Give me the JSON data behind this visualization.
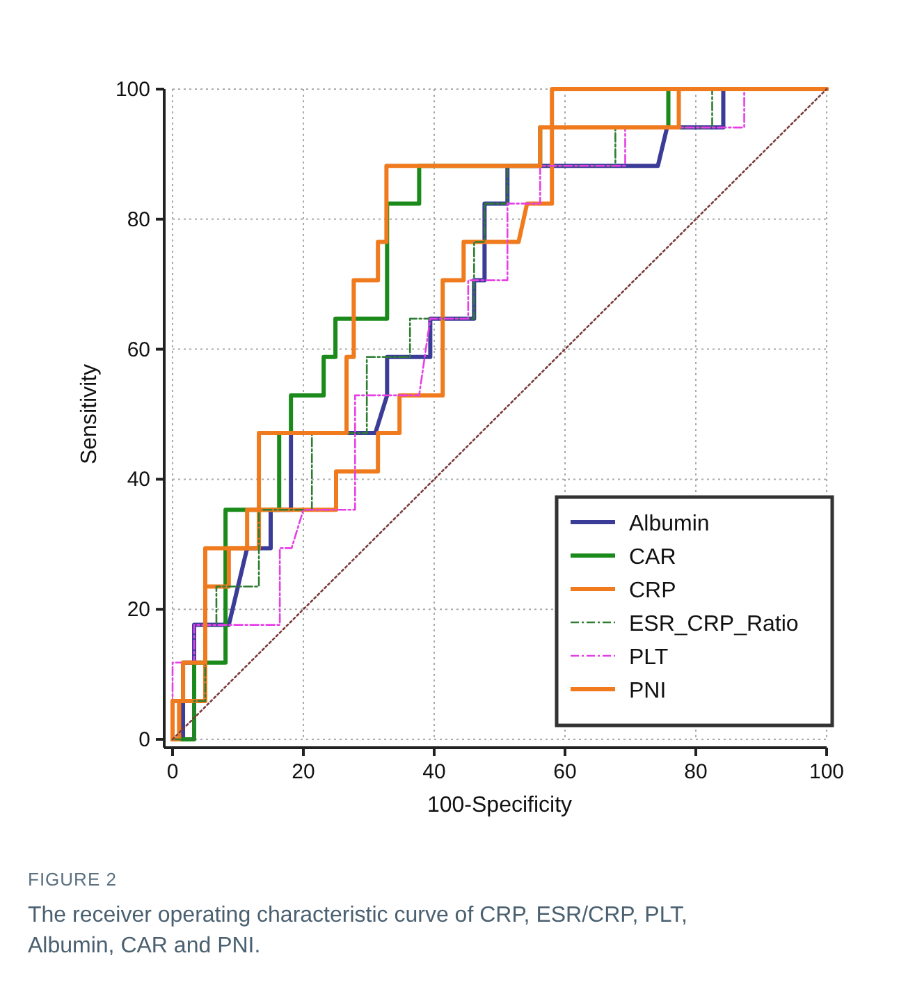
{
  "chart_data": {
    "type": "line",
    "xlabel": "100-Specificity",
    "ylabel": "Sensitivity",
    "xlim": [
      0,
      100
    ],
    "ylim": [
      0,
      100
    ],
    "xticks": [
      0,
      20,
      40,
      60,
      80,
      100
    ],
    "yticks": [
      0,
      20,
      40,
      60,
      80,
      100
    ],
    "grid": true,
    "legend": "bottom right",
    "annotations": [
      "FIGURE 2",
      "The receiver operating characteristic curve of CRP, ESR/CRP, PLT, Albumin, CAR and PNI."
    ],
    "series": [
      {
        "name": "Albumin",
        "color": "#3b3b98",
        "line_style": "solid",
        "x": [
          0,
          1.6,
          1.6,
          3.3,
          3.3,
          8.6,
          11.4,
          15,
          15,
          18.1,
          18.1,
          31,
          32.8,
          32.8,
          39.4,
          39.4,
          46.1,
          46.1,
          47.7,
          47.7,
          51.2,
          51.2,
          74.2,
          75.6,
          84.2,
          84.2,
          100
        ],
        "values": [
          0,
          0,
          11.8,
          11.8,
          17.6,
          17.6,
          29.4,
          29.4,
          35.3,
          35.3,
          47.1,
          47.1,
          52.9,
          58.8,
          58.8,
          64.7,
          64.7,
          70.6,
          70.6,
          82.4,
          82.4,
          88.2,
          88.2,
          94.1,
          94.1,
          100,
          100
        ]
      },
      {
        "name": "CAR",
        "color": "#1a8a1a",
        "line_style": "solid",
        "x": [
          0,
          3.3,
          3.3,
          8.1,
          8.1,
          16.3,
          16.3,
          18.1,
          18.1,
          23.1,
          23.1,
          24.9,
          24.9,
          32.8,
          32.8,
          37.7,
          37.7,
          56.2,
          56.2,
          75.8,
          75.8,
          100
        ],
        "values": [
          0,
          0,
          11.8,
          11.8,
          35.3,
          35.3,
          47.1,
          47.1,
          52.9,
          52.9,
          58.8,
          58.8,
          64.7,
          64.7,
          82.4,
          82.4,
          88.2,
          88.2,
          94.1,
          94.1,
          100,
          100
        ]
      },
      {
        "name": "CRP",
        "color": "#f07b1e",
        "line_style": "solid",
        "x": [
          0,
          1,
          1,
          5,
          5,
          8.6,
          8.6,
          13.2,
          13.2,
          25,
          25,
          31.4,
          31.4,
          34.7,
          34.7,
          41.3,
          41.3,
          44.5,
          44.5,
          52.9,
          54.2,
          58,
          58,
          100
        ],
        "values": [
          0,
          0,
          5.9,
          5.9,
          23.5,
          23.5,
          29.4,
          29.4,
          35.3,
          35.3,
          41.2,
          41.2,
          47.1,
          47.1,
          52.9,
          52.9,
          70.6,
          70.6,
          76.5,
          76.5,
          82.4,
          82.4,
          100,
          100
        ]
      },
      {
        "name": "ESR_CRP_Ratio",
        "color": "#2e7d32",
        "line_style": "dashed",
        "x": [
          0,
          3.3,
          3.3,
          5,
          5,
          6.7,
          6.7,
          13.2,
          13.2,
          21.3,
          21.3,
          29.7,
          29.7,
          36.3,
          36.3,
          46.1,
          46.1,
          47.7,
          47.7,
          51.2,
          51.2,
          67.7,
          67.7,
          82.5,
          82.5,
          100
        ],
        "values": [
          0,
          0,
          5.9,
          5.9,
          17.6,
          17.6,
          23.5,
          23.5,
          35.3,
          35.3,
          47.1,
          47.1,
          58.8,
          58.8,
          64.7,
          64.7,
          76.5,
          76.5,
          82.4,
          82.4,
          88.2,
          88.2,
          94.1,
          94.1,
          100,
          100
        ]
      },
      {
        "name": "PLT",
        "color": "#e83ee8",
        "line_style": "dashed",
        "x": [
          0,
          0,
          3.3,
          3.3,
          16.4,
          16.4,
          18.2,
          20,
          27.9,
          27.9,
          37.7,
          39.4,
          45.2,
          45.2,
          51.2,
          51.2,
          56.2,
          56.2,
          69.2,
          69.2,
          87.4,
          87.4,
          100
        ],
        "values": [
          0,
          11.8,
          11.8,
          17.6,
          17.6,
          29.4,
          29.4,
          35.3,
          35.3,
          52.9,
          52.9,
          64.7,
          64.7,
          70.6,
          70.6,
          82.4,
          82.4,
          88.2,
          88.2,
          94.1,
          94.1,
          100,
          100
        ]
      },
      {
        "name": "PNI",
        "color": "#f07b1e",
        "line_style": "solid",
        "x": [
          0,
          0,
          1.6,
          1.6,
          5,
          5,
          11.4,
          11.4,
          13.2,
          13.2,
          26.6,
          26.6,
          27.7,
          27.7,
          31.4,
          31.4,
          32.7,
          32.7,
          56.2,
          56.2,
          77.4,
          77.4,
          100
        ],
        "values": [
          0,
          5.9,
          5.9,
          11.8,
          11.8,
          29.4,
          29.4,
          35.3,
          35.3,
          47.1,
          47.1,
          58.8,
          58.8,
          70.6,
          70.6,
          76.5,
          76.5,
          88.2,
          88.2,
          94.1,
          94.1,
          100,
          100
        ]
      },
      {
        "color": "#7a3a3a",
        "line_style": "dotted",
        "x": [
          0,
          100
        ],
        "values": [
          0,
          100
        ]
      }
    ]
  }
}
